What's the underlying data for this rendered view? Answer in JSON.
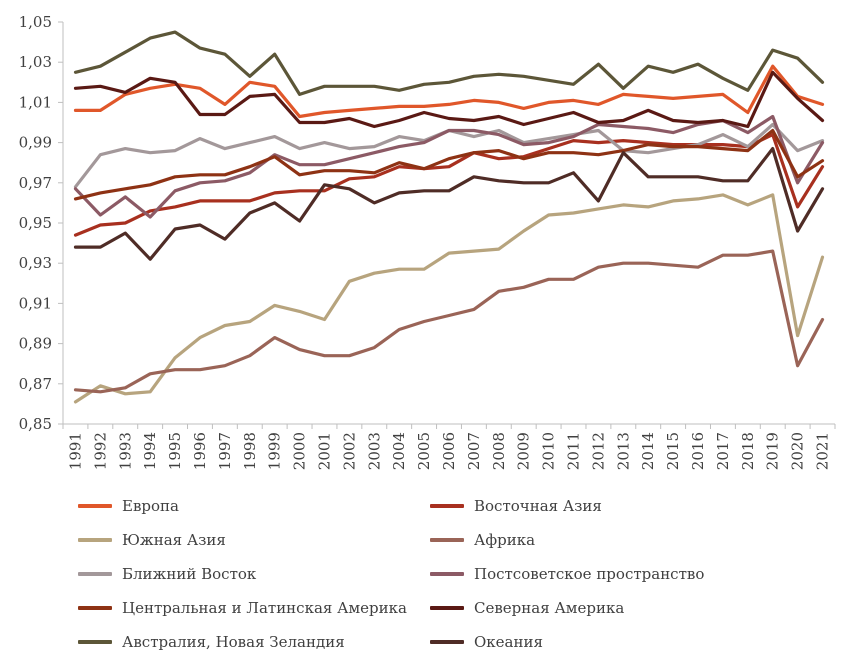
{
  "chart_data": {
    "type": "line",
    "title": "",
    "xlabel": "",
    "ylabel": "",
    "ylim": [
      0.85,
      1.05
    ],
    "y_ticks": [
      "0,85",
      "0,87",
      "0,89",
      "0,91",
      "0,93",
      "0,95",
      "0,97",
      "0,99",
      "1,01",
      "1,03",
      "1,05"
    ],
    "grid": false,
    "legend_position": "bottom",
    "categories": [
      "1991",
      "1992",
      "1993",
      "1994",
      "1995",
      "1996",
      "1997",
      "1998",
      "1999",
      "2000",
      "2001",
      "2002",
      "2003",
      "2004",
      "2005",
      "2006",
      "2007",
      "2008",
      "2009",
      "2010",
      "2011",
      "2012",
      "2013",
      "2014",
      "2015",
      "2016",
      "2017",
      "2018",
      "2019",
      "2020",
      "2021"
    ],
    "series": [
      {
        "name": "Европа",
        "color": "#e0572a",
        "values": [
          1.006,
          1.006,
          1.014,
          1.017,
          1.019,
          1.017,
          1.009,
          1.02,
          1.018,
          1.003,
          1.005,
          1.006,
          1.007,
          1.008,
          1.008,
          1.009,
          1.011,
          1.01,
          1.007,
          1.01,
          1.011,
          1.009,
          1.014,
          1.013,
          1.012,
          1.013,
          1.014,
          1.005,
          1.028,
          1.013,
          1.009
        ]
      },
      {
        "name": "Восточная Азия",
        "color": "#a8301f",
        "values": [
          0.944,
          0.949,
          0.95,
          0.956,
          0.958,
          0.961,
          0.961,
          0.961,
          0.965,
          0.966,
          0.966,
          0.972,
          0.973,
          0.978,
          0.977,
          0.978,
          0.985,
          0.982,
          0.983,
          0.987,
          0.991,
          0.99,
          0.991,
          0.99,
          0.989,
          0.989,
          0.989,
          0.988,
          0.994,
          0.958,
          0.978
        ]
      },
      {
        "name": "Южная Азия",
        "color": "#b7a47e",
        "values": [
          0.861,
          0.869,
          0.865,
          0.866,
          0.883,
          0.893,
          0.899,
          0.901,
          0.909,
          0.906,
          0.902,
          0.921,
          0.925,
          0.927,
          0.927,
          0.935,
          0.936,
          0.937,
          0.946,
          0.954,
          0.955,
          0.957,
          0.959,
          0.958,
          0.961,
          0.962,
          0.964,
          0.959,
          0.964,
          0.894,
          0.933
        ]
      },
      {
        "name": "Африка",
        "color": "#9a6457",
        "values": [
          0.867,
          0.866,
          0.868,
          0.875,
          0.877,
          0.877,
          0.879,
          0.884,
          0.893,
          0.887,
          0.884,
          0.884,
          0.888,
          0.897,
          0.901,
          0.904,
          0.907,
          0.916,
          0.918,
          0.922,
          0.922,
          0.928,
          0.93,
          0.93,
          0.929,
          0.928,
          0.934,
          0.934,
          0.936,
          0.879,
          0.902
        ]
      },
      {
        "name": "Ближний Восток",
        "color": "#a3989a",
        "values": [
          0.968,
          0.984,
          0.987,
          0.985,
          0.986,
          0.992,
          0.987,
          0.99,
          0.993,
          0.987,
          0.99,
          0.987,
          0.988,
          0.993,
          0.991,
          0.996,
          0.993,
          0.996,
          0.99,
          0.992,
          0.994,
          0.996,
          0.986,
          0.985,
          0.987,
          0.989,
          0.994,
          0.988,
          0.999,
          0.986,
          0.991
        ]
      },
      {
        "name": "Постсоветское пространство",
        "color": "#8c5a65",
        "values": [
          0.967,
          0.954,
          0.963,
          0.953,
          0.966,
          0.97,
          0.971,
          0.975,
          0.984,
          0.979,
          0.979,
          0.982,
          0.985,
          0.988,
          0.99,
          0.996,
          0.996,
          0.994,
          0.989,
          0.99,
          0.993,
          0.999,
          0.998,
          0.997,
          0.995,
          0.999,
          1.001,
          0.995,
          1.003,
          0.97,
          0.99
        ]
      },
      {
        "name": "Центральная и Латинская Америка",
        "color": "#8e3214",
        "values": [
          0.962,
          0.965,
          0.967,
          0.969,
          0.973,
          0.974,
          0.974,
          0.978,
          0.983,
          0.974,
          0.976,
          0.976,
          0.975,
          0.98,
          0.977,
          0.982,
          0.985,
          0.986,
          0.982,
          0.985,
          0.985,
          0.984,
          0.986,
          0.989,
          0.988,
          0.988,
          0.987,
          0.986,
          0.996,
          0.973,
          0.981
        ]
      },
      {
        "name": "Северная Америка",
        "color": "#5a1914",
        "values": [
          1.017,
          1.018,
          1.015,
          1.022,
          1.02,
          1.004,
          1.004,
          1.013,
          1.014,
          1.0,
          1.0,
          1.002,
          0.998,
          1.001,
          1.005,
          1.002,
          1.001,
          1.003,
          0.999,
          1.002,
          1.005,
          1.0,
          1.001,
          1.006,
          1.001,
          1.0,
          1.001,
          0.998,
          1.025,
          1.012,
          1.001
        ]
      },
      {
        "name": "Австралия, Новая Зеландия",
        "color": "#5c5638",
        "values": [
          1.025,
          1.028,
          1.035,
          1.042,
          1.045,
          1.037,
          1.034,
          1.023,
          1.034,
          1.014,
          1.018,
          1.018,
          1.018,
          1.016,
          1.019,
          1.02,
          1.023,
          1.024,
          1.023,
          1.021,
          1.019,
          1.029,
          1.017,
          1.028,
          1.025,
          1.029,
          1.022,
          1.016,
          1.036,
          1.032,
          1.02
        ]
      },
      {
        "name": "Океания",
        "color": "#4f2c26",
        "values": [
          0.938,
          0.938,
          0.945,
          0.932,
          0.947,
          0.949,
          0.942,
          0.955,
          0.96,
          0.951,
          0.969,
          0.967,
          0.96,
          0.965,
          0.966,
          0.966,
          0.973,
          0.971,
          0.97,
          0.97,
          0.975,
          0.961,
          0.985,
          0.973,
          0.973,
          0.973,
          0.971,
          0.971,
          0.987,
          0.946,
          0.967
        ]
      }
    ]
  }
}
